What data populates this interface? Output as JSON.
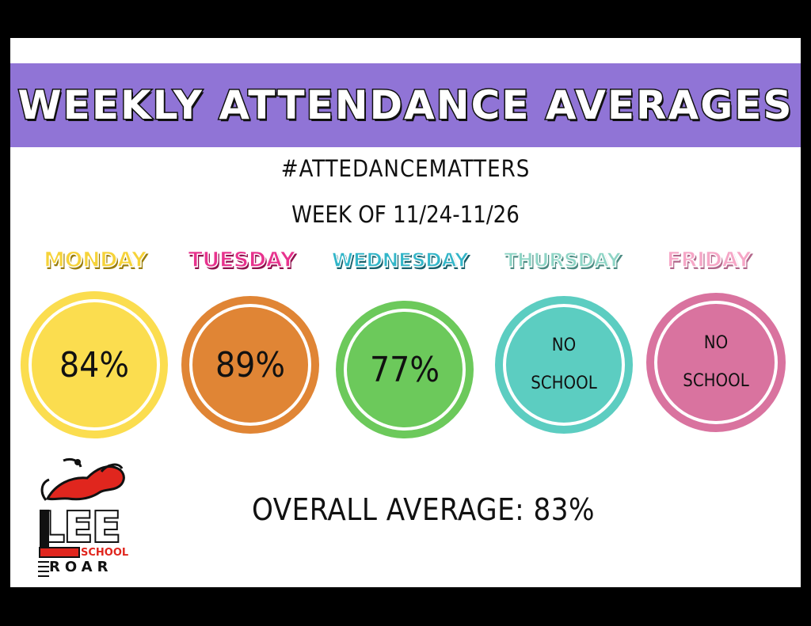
{
  "title": "WEEKLY ATTENDANCE AVERAGES",
  "hashtag": "#ATTEDANCEMATTERS",
  "week": "WEEK OF 11/24-11/26",
  "days": [
    {
      "label": "MONDAY",
      "value": "84%",
      "circle_color": "#fbdd4f",
      "label_color": "#f6d33a",
      "label_shadow": "#9a7d0a"
    },
    {
      "label": "TUESDAY",
      "value": "89%",
      "circle_color": "#e08535",
      "label_color": "#e8338e",
      "label_shadow": "#8f0f4c"
    },
    {
      "label": "WEDNESDAY",
      "value": "77%",
      "circle_color": "#6cc95b",
      "label_color": "#33b6c9",
      "label_shadow": "#17606b"
    },
    {
      "label": "THURSDAY",
      "value_line1": "NO",
      "value_line2": "SCHOOL",
      "circle_color": "#5ccdc1",
      "label_color": "#8fd5c6",
      "label_shadow": "#4b8b82"
    },
    {
      "label": "FRIDAY",
      "value_line1": "NO",
      "value_line2": "SCHOOL",
      "circle_color": "#d9739f",
      "label_color": "#f6a7c7",
      "label_shadow": "#b1668a"
    }
  ],
  "overall": "OVERALL AVERAGE: 83%",
  "logo": {
    "big": "LEE",
    "mid": "SCHOOL",
    "bottom": "ROAR"
  },
  "colors": {
    "banner": "#9074d6",
    "background": "#000000",
    "card": "#ffffff",
    "logo_red": "#e0261e"
  }
}
